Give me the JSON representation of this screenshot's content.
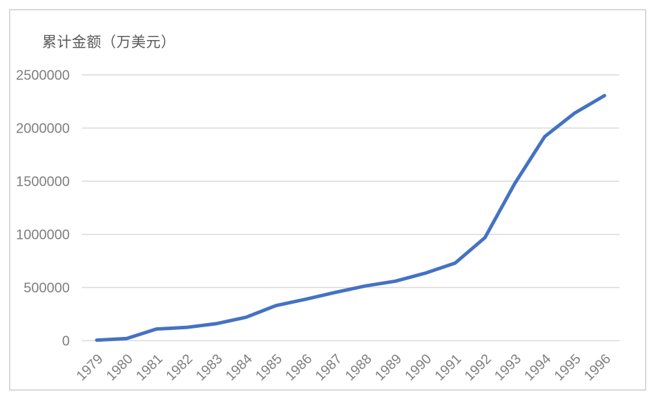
{
  "chart_data": {
    "type": "line",
    "title": "累计金额（万美元）",
    "xlabel": "",
    "ylabel": "累计金额（万美元）",
    "categories": [
      "1979",
      "1980",
      "1981",
      "1982",
      "1983",
      "1984",
      "1985",
      "1986",
      "1987",
      "1988",
      "1989",
      "1990",
      "1991",
      "1992",
      "1993",
      "1994",
      "1995",
      "1996"
    ],
    "values": [
      5000,
      20000,
      110000,
      125000,
      160000,
      220000,
      330000,
      390000,
      455000,
      515000,
      560000,
      635000,
      730000,
      970000,
      1480000,
      1920000,
      2140000,
      2305000
    ],
    "ylim": [
      0,
      2500000
    ],
    "yticks": [
      0,
      500000,
      1000000,
      1500000,
      2000000,
      2500000
    ],
    "grid": "horizontal",
    "legend": "none",
    "colors": {
      "line": "#4472C4",
      "grid": "#D9D9D9",
      "border": "#D9D9D9",
      "tick_label": "#7F7F7F",
      "title": "#595959",
      "background": "#FFFFFF"
    }
  }
}
